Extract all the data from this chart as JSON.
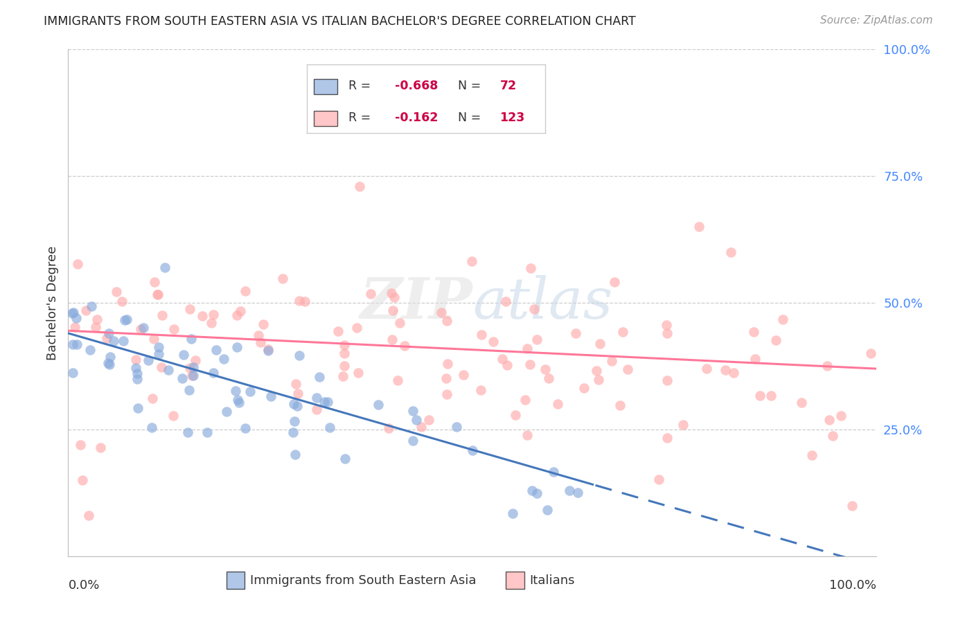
{
  "title": "IMMIGRANTS FROM SOUTH EASTERN ASIA VS ITALIAN BACHELOR'S DEGREE CORRELATION CHART",
  "source": "Source: ZipAtlas.com",
  "ylabel": "Bachelor's Degree",
  "right_yticks": [
    0.0,
    0.25,
    0.5,
    0.75,
    1.0
  ],
  "right_yticklabels": [
    "",
    "25.0%",
    "50.0%",
    "75.0%",
    "100.0%"
  ],
  "blue_R": -0.668,
  "blue_N": 72,
  "pink_R": -0.162,
  "pink_N": 123,
  "blue_color": "#88AADD",
  "pink_color": "#FFAAAA",
  "blue_line_color": "#4477BB",
  "pink_line_color": "#FF7799",
  "watermark": "ZIPatlas",
  "background_color": "#FFFFFF",
  "grid_color": "#CCCCCC",
  "title_color": "#222222",
  "right_axis_color": "#4488FF",
  "legend_box_edge": "#CCCCCC"
}
